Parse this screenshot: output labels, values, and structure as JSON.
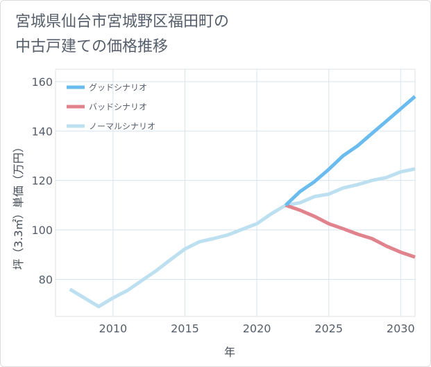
{
  "title_lines": [
    "宮城県仙台市宮城野区福田町の",
    "中古戸建ての価格推移"
  ],
  "chart_data": {
    "type": "line",
    "title": "宮城県仙台市宮城野区福田町の中古戸建ての価格推移",
    "xlabel": "年",
    "ylabel": "坪（3.3㎡）単価（万円）",
    "xlim": [
      2006,
      2031
    ],
    "ylim": [
      65,
      165
    ],
    "xticks": [
      2010,
      2015,
      2020,
      2025,
      2030
    ],
    "yticks": [
      80,
      100,
      120,
      140,
      160
    ],
    "grid": true,
    "legend_position": "top-left",
    "series": [
      {
        "name": "グッドシナリオ",
        "color": "#6bbcee",
        "x": [
          2022,
          2023,
          2024,
          2025,
          2026,
          2027,
          2028,
          2029,
          2030,
          2031
        ],
        "y": [
          110,
          115.5,
          119.5,
          124.5,
          130,
          134,
          139,
          144,
          149,
          154
        ]
      },
      {
        "name": "バッドシナリオ",
        "color": "#e0838c",
        "x": [
          2022,
          2023,
          2024,
          2025,
          2026,
          2027,
          2028,
          2029,
          2030,
          2031
        ],
        "y": [
          110,
          108,
          105.5,
          102.5,
          100.5,
          98.3,
          96.5,
          93.5,
          91,
          89
        ]
      },
      {
        "name": "ノーマルシナリオ",
        "color": "#bde0f0",
        "x": [
          2007,
          2008,
          2009,
          2010,
          2011,
          2012,
          2013,
          2014,
          2015,
          2016,
          2017,
          2018,
          2019,
          2020,
          2021,
          2022,
          2023,
          2024,
          2025,
          2026,
          2027,
          2028,
          2029,
          2030,
          2031
        ],
        "y": [
          76,
          72.5,
          69,
          72.5,
          75.5,
          79.5,
          83.5,
          88,
          92.3,
          95.2,
          96.5,
          98,
          100.3,
          102.5,
          106.5,
          110,
          111,
          113.5,
          114.5,
          117,
          118.3,
          120,
          121.2,
          123.5,
          124.7
        ]
      }
    ]
  }
}
